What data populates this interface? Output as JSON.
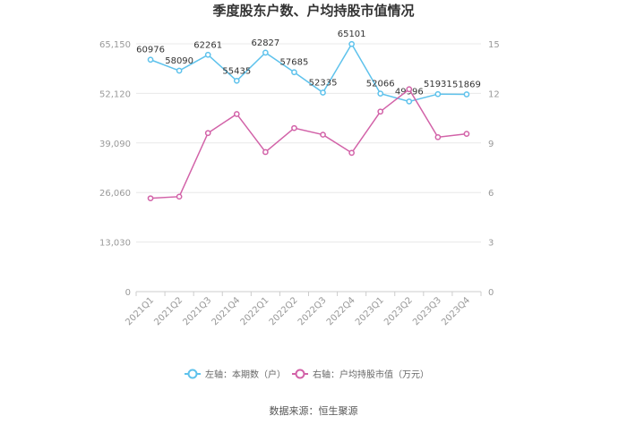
{
  "chart_data": {
    "type": "line",
    "title": "季度股东户数、户均持股市值情况",
    "categories": [
      "2021Q1",
      "2021Q2",
      "2021Q3",
      "2021Q4",
      "2022Q1",
      "2022Q2",
      "2022Q3",
      "2022Q4",
      "2023Q1",
      "2023Q2",
      "2023Q3",
      "2023Q4"
    ],
    "left_axis": {
      "ticks": [
        "0",
        "13,030",
        "26,060",
        "39,090",
        "52,120",
        "65,150"
      ],
      "range": [
        0,
        65150
      ]
    },
    "right_axis": {
      "ticks": [
        "0",
        "3",
        "6",
        "9",
        "12",
        "15"
      ],
      "range": [
        0,
        15
      ]
    },
    "series": [
      {
        "name": "左轴：本期数（户）",
        "axis": "left",
        "color": "#5ec2ec",
        "values": [
          60976,
          58090,
          62261,
          55435,
          62827,
          57685,
          52335,
          65101,
          52066,
          49996,
          51931,
          51869
        ],
        "labels": [
          "60976",
          "58090",
          "62261",
          "55435",
          "62827",
          "57685",
          "52335",
          "65101",
          "52066",
          "49996",
          "51931",
          "51869"
        ]
      },
      {
        "name": "右轴：户均持股市值（万元）",
        "axis": "right",
        "color": "#d262a8",
        "values": [
          5.65,
          5.75,
          9.6,
          10.75,
          8.45,
          9.9,
          9.5,
          8.4,
          10.9,
          12.25,
          9.35,
          9.55
        ]
      }
    ],
    "grid": true,
    "legend_position": "bottom"
  },
  "source": "数据来源：恒生聚源"
}
